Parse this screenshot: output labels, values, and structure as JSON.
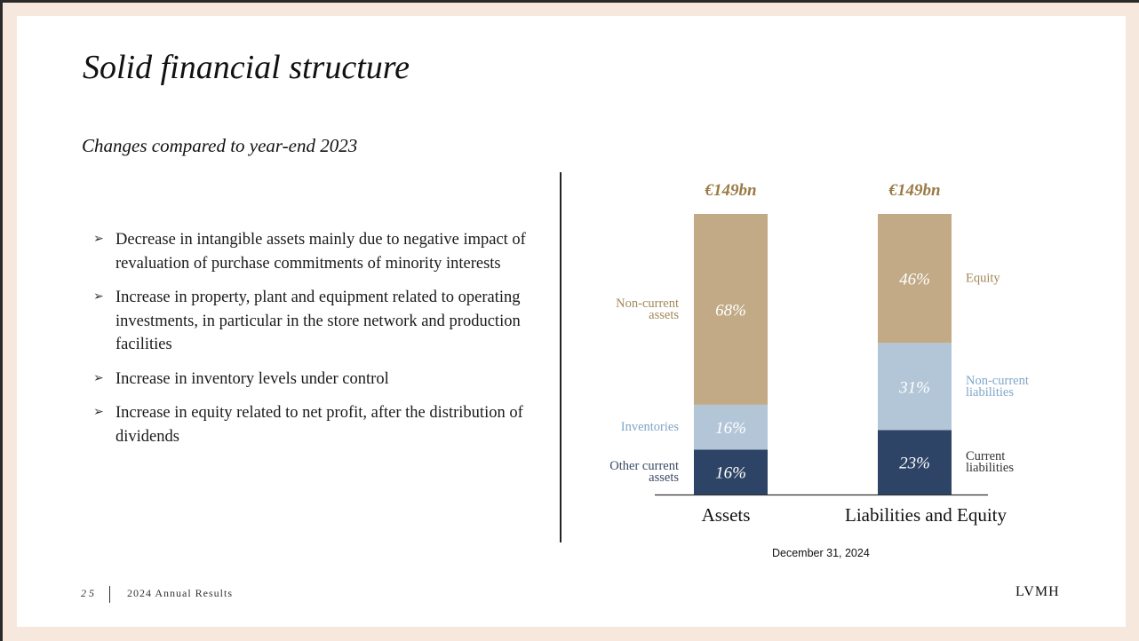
{
  "slide": {
    "title": "Solid financial structure",
    "subtitle": "Changes compared to year-end 2023",
    "bullets": [
      "Decrease in intangible assets mainly due to negative impact of revaluation of purchase commitments of minority interests",
      "Increase in property, plant and equipment related to operating investments, in particular in the store network and production facilities",
      "Increase in inventory levels under control",
      "Increase in equity related to net profit, after the distribution of dividends"
    ],
    "bullet_glyph": "➢",
    "date_note": "December 31, 2024",
    "footer": {
      "page": "25",
      "label": "2024 Annual Results",
      "logo": "LVMH"
    }
  },
  "chart_data": {
    "type": "bar",
    "stacked": true,
    "unit": "%",
    "categories": [
      "Assets",
      "Liabilities and Equity"
    ],
    "totals": [
      "€149bn",
      "€149bn"
    ],
    "stacks": [
      {
        "category": "Assets",
        "segments": [
          {
            "label": "Other current\nassets",
            "value": 16,
            "display": "16%",
            "color": "#2e4466",
            "label_color": "#3b4a66"
          },
          {
            "label": "Inventories",
            "value": 16,
            "display": "16%",
            "color": "#b3c6d8",
            "label_color": "#7fa6c9"
          },
          {
            "label": "Non-current\nassets",
            "value": 68,
            "display": "68%",
            "color": "#c2aa86",
            "label_color": "#a38858"
          }
        ]
      },
      {
        "category": "Liabilities and Equity",
        "segments": [
          {
            "label": "Current\nliabilities",
            "value": 23,
            "display": "23%",
            "color": "#2e4466",
            "label_color": "#333333"
          },
          {
            "label": "Non-current\nliabilities",
            "value": 31,
            "display": "31%",
            "color": "#b3c6d8",
            "label_color": "#7fa6c9"
          },
          {
            "label": "Equity",
            "value": 46,
            "display": "46%",
            "color": "#c2aa86",
            "label_color": "#a38858"
          }
        ]
      }
    ],
    "total_color": "#9a7a45",
    "ylim": [
      0,
      100
    ]
  }
}
